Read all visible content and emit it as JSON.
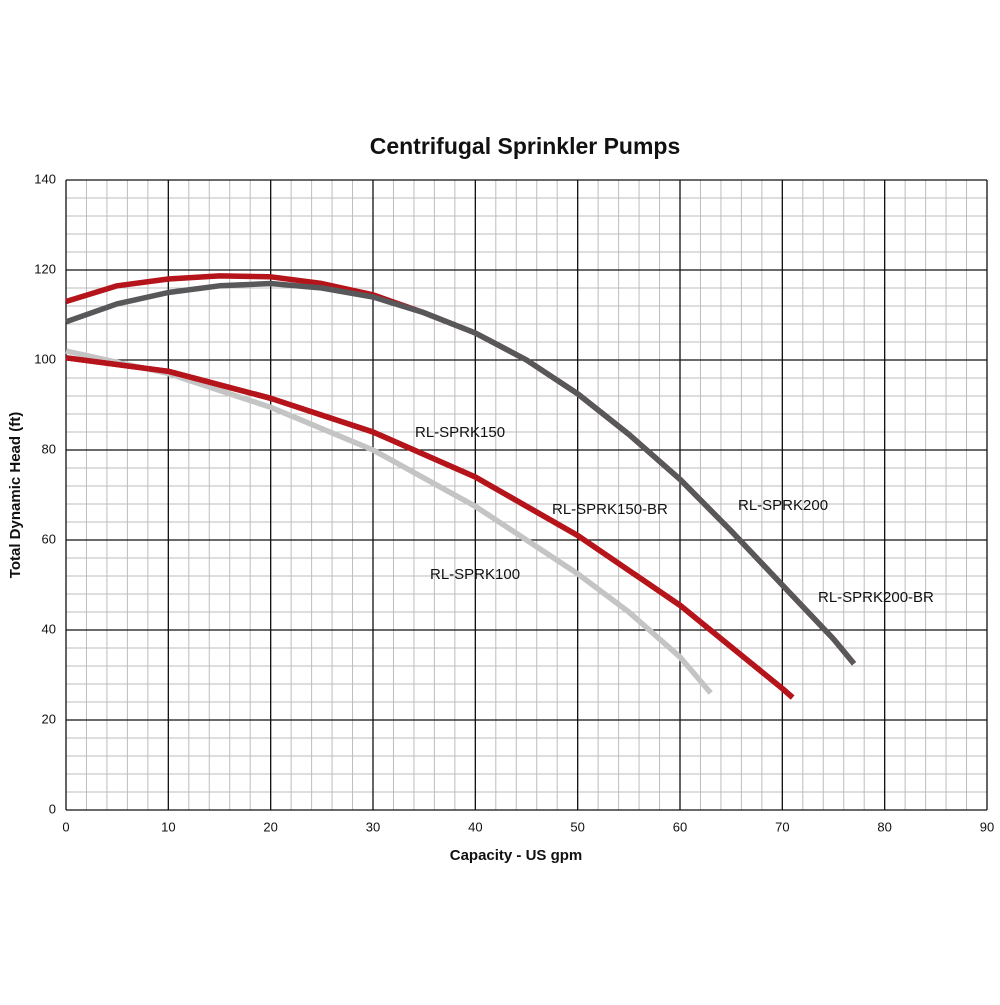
{
  "chart_data": {
    "type": "line",
    "title": "Centrifugal Sprinkler Pumps",
    "x_label": "Capacity - US gpm",
    "y_label": "Total Dynamic Head (ft)",
    "xlim": [
      0,
      90
    ],
    "ylim": [
      0,
      140
    ],
    "xticks": [
      0,
      10,
      20,
      30,
      40,
      50,
      60,
      70,
      80,
      90
    ],
    "yticks": [
      0,
      20,
      40,
      60,
      80,
      100,
      120,
      140
    ],
    "grid": true,
    "minor_xstep": 2,
    "minor_ystep": 4,
    "series": [
      {
        "name": "RL-SPRK200-BR",
        "color": "#b5141b",
        "x": [
          0,
          5,
          10,
          15,
          20,
          25,
          30,
          35,
          40,
          45,
          50,
          55,
          60,
          65,
          70,
          75,
          77
        ],
        "values": [
          113,
          116.5,
          118,
          118.7,
          118.5,
          117,
          114.5,
          110.5,
          106,
          100,
          92.5,
          83.5,
          73.5,
          62,
          50,
          38,
          32.5
        ]
      },
      {
        "name": "RL-SPRK200",
        "color": "#58585a",
        "x": [
          0,
          5,
          10,
          15,
          20,
          25,
          30,
          35,
          40,
          45,
          50,
          55,
          60,
          65,
          70,
          75,
          77
        ],
        "values": [
          108.5,
          112.5,
          115,
          116.5,
          117,
          116,
          114,
          110.5,
          106,
          100,
          92.5,
          83.5,
          73.5,
          62,
          50,
          38,
          32.5
        ]
      },
      {
        "name": "RL-SPRK100",
        "color": "#c4c4c4",
        "x": [
          0,
          10,
          20,
          30,
          40,
          50,
          55,
          60,
          63
        ],
        "values": [
          102,
          97,
          89.5,
          80,
          67.5,
          52.5,
          44,
          34,
          26
        ]
      },
      {
        "name": "RL-SPRK150",
        "color": "#b5141b",
        "x": [
          0,
          10,
          20,
          30,
          40,
          50,
          60,
          70,
          71
        ],
        "values": [
          100.5,
          97.5,
          91.5,
          84,
          74,
          61,
          45.5,
          27,
          25
        ]
      },
      {
        "name": "RL-SPRK150-BR",
        "color": "#b5141b",
        "x": [
          0,
          10,
          20,
          30,
          40,
          50,
          60,
          70,
          71
        ],
        "values": [
          100.5,
          97.5,
          91.5,
          84,
          74,
          61,
          45.5,
          27,
          25
        ]
      }
    ]
  }
}
